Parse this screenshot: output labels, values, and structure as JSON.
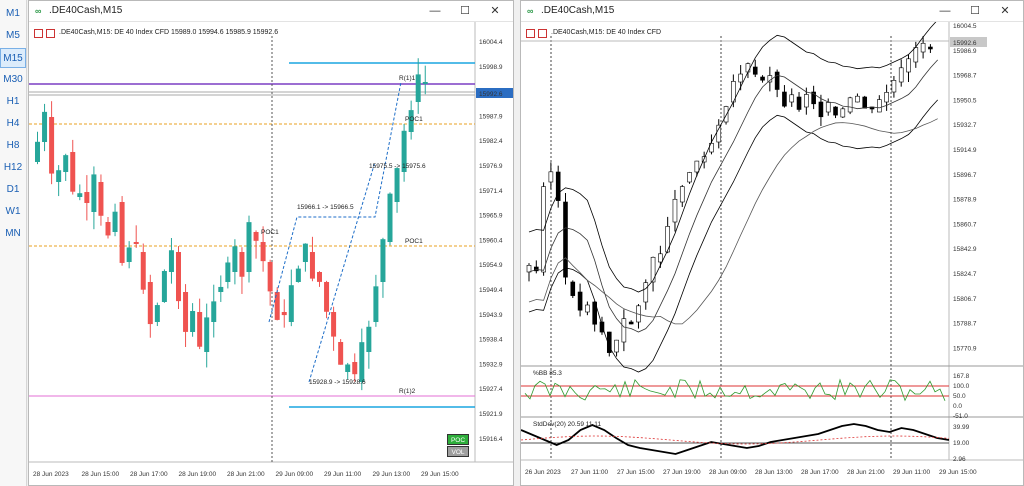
{
  "timeframes": [
    "M1",
    "M5",
    "M15",
    "M30",
    "H1",
    "H4",
    "H8",
    "H12",
    "D1",
    "W1",
    "MN"
  ],
  "active_timeframe": "M15",
  "left": {
    "window_title": ".DE40Cash,M15",
    "chart_label": ".DE40Cash,M15:  DE 40 Index CFD  15989.0 15994.6 15985.9 15992.6",
    "price_ticks": [
      "16004.4",
      "15998.9",
      "15993.5",
      "15987.9",
      "15982.4",
      "15976.9",
      "15971.4",
      "15965.9",
      "15960.4",
      "15954.9",
      "15949.4",
      "15943.9",
      "15938.4",
      "15932.9",
      "15927.4",
      "15921.9",
      "15916.4"
    ],
    "current_price": "15992.6",
    "time_ticks": [
      "28 Jun 2023",
      "28 Jun 15:00",
      "28 Jun 17:00",
      "28 Jun 19:00",
      "28 Jun 21:00",
      "29 Jun 09:00",
      "29 Jun 11:00",
      "29 Jun 13:00",
      "29 Jun 15:00"
    ],
    "annotations": [
      "15966.1 -> 15966.5",
      "15975.5 -> 15975.6",
      "15928.9 -> 15928.6"
    ],
    "level_labels": [
      "R(1)1",
      "POC1",
      "POC1",
      "POC1",
      "R(1)2"
    ],
    "poc_badge": "POC",
    "vol_badge": "VOL"
  },
  "right": {
    "window_title": ".DE40Cash,M15",
    "chart_label": ".DE40Cash,M15:  DE 40 Index CFD",
    "price_ticks": [
      "16004.5",
      "15986.9",
      "15968.7",
      "15950.5",
      "15932.7",
      "15914.9",
      "15896.7",
      "15878.9",
      "15860.7",
      "15842.9",
      "15824.7",
      "15806.7",
      "15788.7",
      "15770.9"
    ],
    "current_price": "15992.6",
    "bb_label": "%BB 85.3",
    "bb_ticks": [
      "167.8",
      "100.0",
      "50.0",
      "0.0",
      "-51.0"
    ],
    "std_label": "StdDev(20) 20.59 11.11",
    "std_ticks": [
      "39.99",
      "19.00",
      "2.96"
    ],
    "time_ticks": [
      "26 Jun 2023",
      "27 Jun 11:00",
      "27 Jun 15:00",
      "27 Jun 19:00",
      "28 Jun 09:00",
      "28 Jun 13:00",
      "28 Jun 17:00",
      "28 Jun 21:00",
      "29 Jun 11:00",
      "29 Jun 15:00"
    ]
  },
  "colors": {
    "bull": "#26a69a",
    "bear": "#ef5350",
    "price_tag": "#2b6dc2",
    "poc_green": "#2eae3b"
  }
}
